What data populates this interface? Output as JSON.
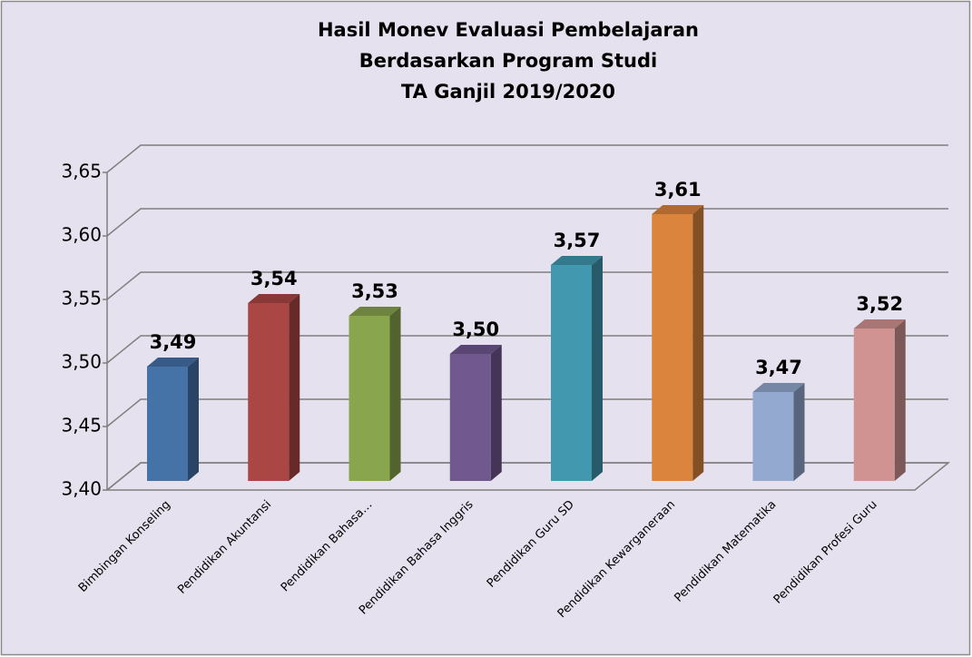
{
  "chart_data": {
    "type": "bar",
    "title": [
      "Hasil Monev Evaluasi Pembelajaran",
      "Berdasarkan Program Studi",
      "TA Ganjil 2019/2020"
    ],
    "categories": [
      "Bimbingan Konseling",
      "Pendidikan Akuntansi",
      "Pendidikan Bahasa…",
      "Pendidikan Bahasa Inggris",
      "Pendidikan Guru SD",
      "Pendidikan Kewarganeraan",
      "Pendidikan Matematika",
      "Pendidikan Profesi Guru"
    ],
    "values": [
      3.49,
      3.54,
      3.53,
      3.5,
      3.57,
      3.61,
      3.47,
      3.52
    ],
    "value_labels": [
      "3,49",
      "3,54",
      "3,53",
      "3,50",
      "3,57",
      "3,61",
      "3,47",
      "3,52"
    ],
    "colors": [
      "#4572a7",
      "#aa4643",
      "#89a54e",
      "#71588f",
      "#4198af",
      "#db843d",
      "#93a9cf",
      "#d19392"
    ],
    "ylim": [
      3.4,
      3.65
    ],
    "yticks": [
      {
        "value": 3.4,
        "label": "3,40"
      },
      {
        "value": 3.45,
        "label": "3,45"
      },
      {
        "value": 3.5,
        "label": "3,50"
      },
      {
        "value": 3.55,
        "label": "3,55"
      },
      {
        "value": 3.6,
        "label": "3,60"
      },
      {
        "value": 3.65,
        "label": "3,65"
      }
    ],
    "grid": true
  }
}
